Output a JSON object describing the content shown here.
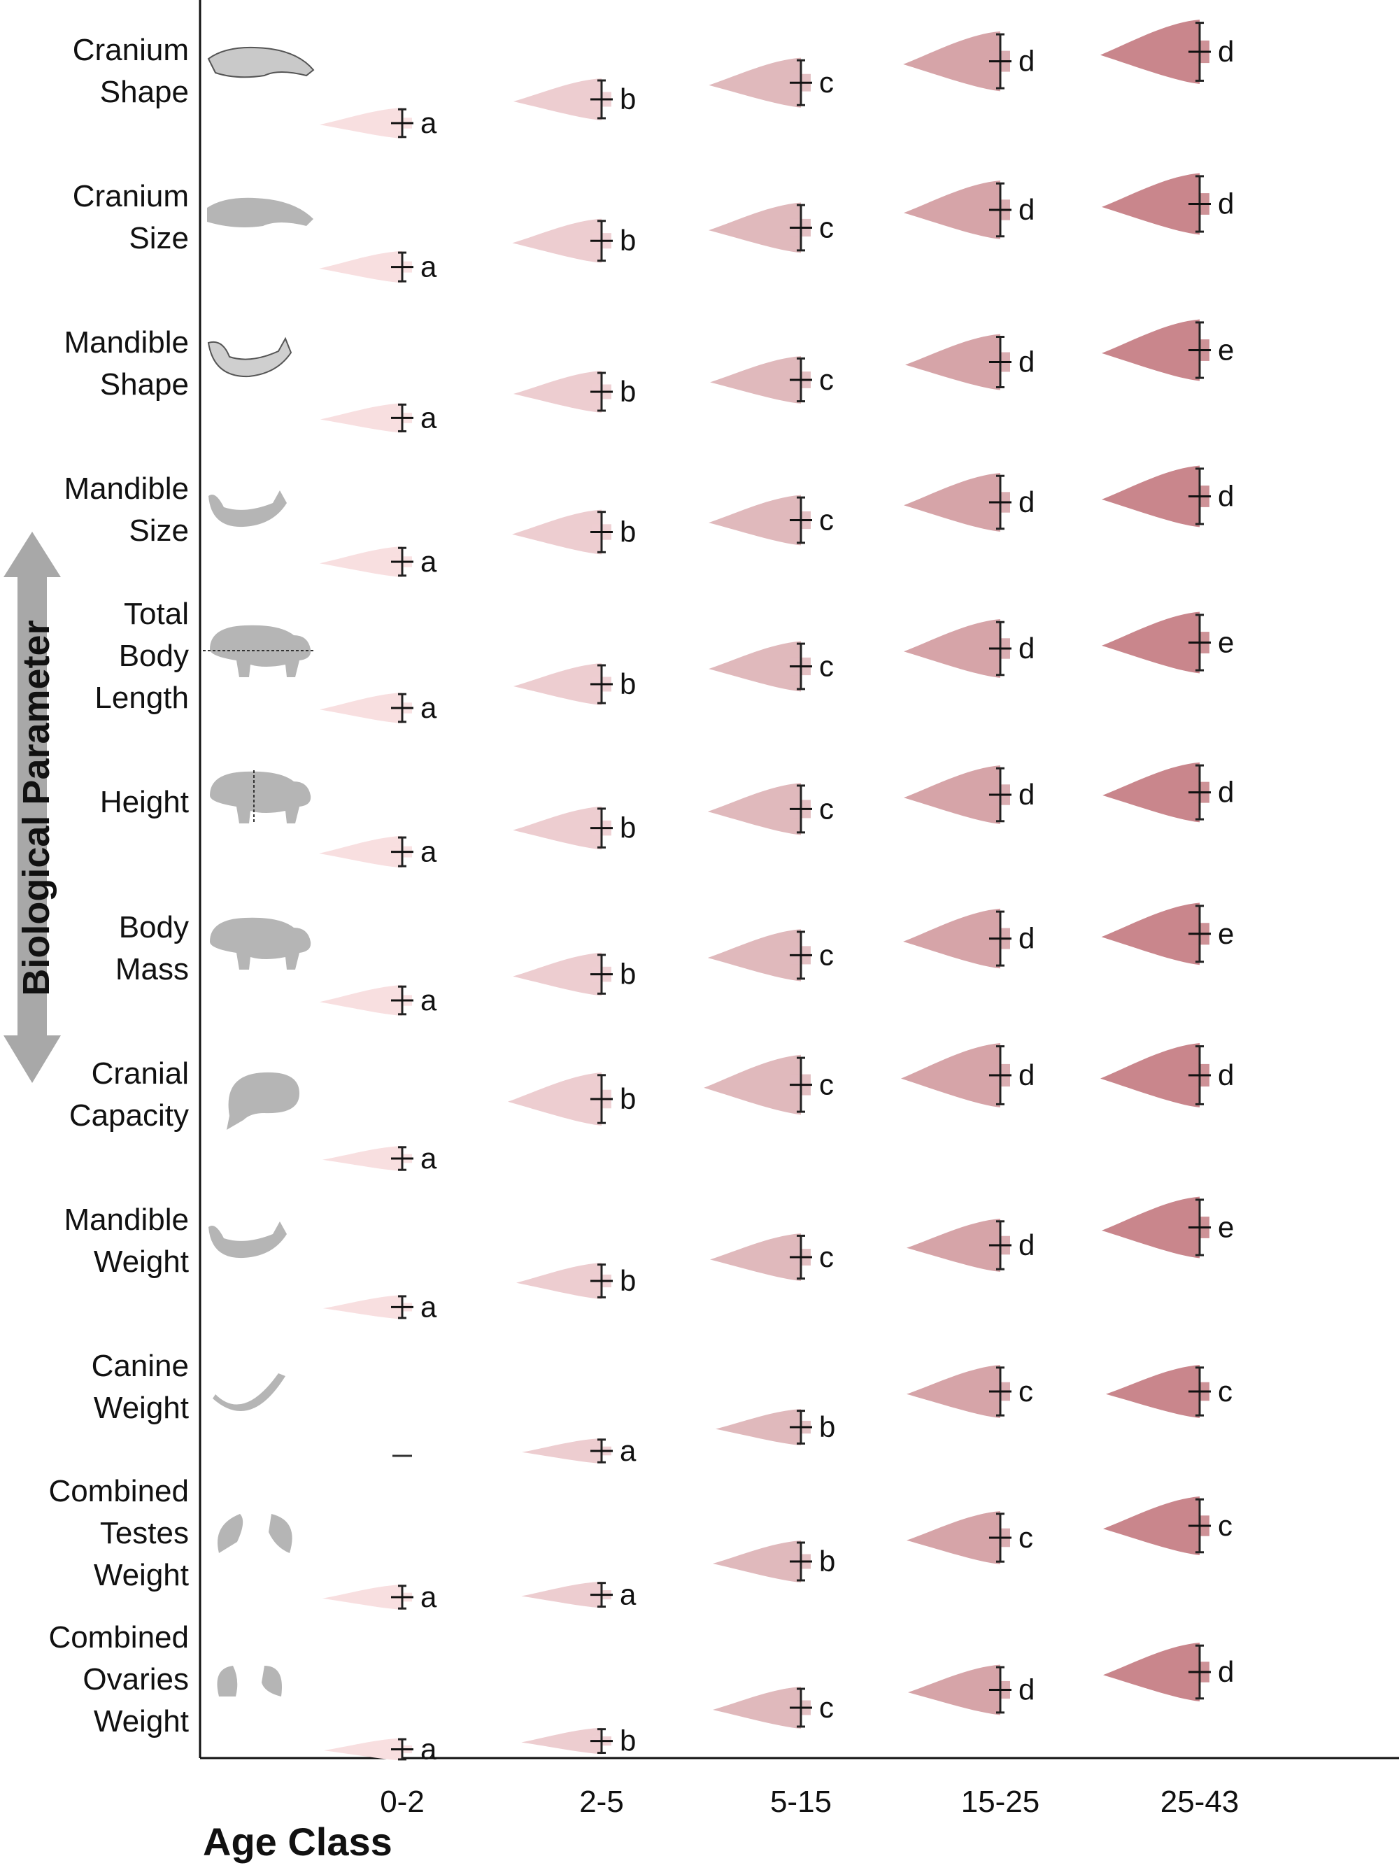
{
  "chart_data": {
    "type": "violin",
    "xlabel": "Age Class",
    "ylabel": "Biological Parameter",
    "categories": [
      "0-2",
      "2-5",
      "5-15",
      "15-25",
      "25-43"
    ],
    "colors": [
      "#f8dfe0",
      "#edcdd0",
      "#e0b9bc",
      "#d6a4a8",
      "#c9868c"
    ],
    "rows": [
      {
        "label": [
          "Cranium",
          "Shape"
        ],
        "icon": "skull-icon",
        "letters": [
          "a",
          "b",
          "c",
          "d",
          "d"
        ],
        "levels": [
          0.2,
          0.4,
          0.54,
          0.72,
          0.8
        ]
      },
      {
        "label": [
          "Cranium",
          "Size"
        ],
        "icon": "skull-silhouette-icon",
        "letters": [
          "a",
          "b",
          "c",
          "d",
          "d"
        ],
        "levels": [
          0.22,
          0.44,
          0.55,
          0.7,
          0.75
        ]
      },
      {
        "label": [
          "Mandible",
          "Shape"
        ],
        "icon": "mandible-icon",
        "letters": [
          "a",
          "b",
          "c",
          "d",
          "e"
        ],
        "levels": [
          0.18,
          0.4,
          0.5,
          0.65,
          0.75
        ]
      },
      {
        "label": [
          "Mandible",
          "Size"
        ],
        "icon": "mandible-silhouette-icon",
        "letters": [
          "a",
          "b",
          "c",
          "d",
          "d"
        ],
        "levels": [
          0.2,
          0.45,
          0.55,
          0.7,
          0.75
        ]
      },
      {
        "label": [
          "Total",
          "Body",
          "Length"
        ],
        "icon": "hippo-length-icon",
        "letters": [
          "a",
          "b",
          "c",
          "d",
          "e"
        ],
        "levels": [
          0.2,
          0.4,
          0.55,
          0.7,
          0.75
        ]
      },
      {
        "label": [
          "Height"
        ],
        "icon": "hippo-height-icon",
        "letters": [
          "a",
          "b",
          "c",
          "d",
          "d"
        ],
        "levels": [
          0.22,
          0.42,
          0.58,
          0.7,
          0.72
        ]
      },
      {
        "label": [
          "Body",
          "Mass"
        ],
        "icon": "hippo-icon",
        "letters": [
          "a",
          "b",
          "c",
          "d",
          "e"
        ],
        "levels": [
          0.2,
          0.42,
          0.58,
          0.72,
          0.76
        ]
      },
      {
        "label": [
          "Cranial",
          "Capacity"
        ],
        "icon": "brain-icon",
        "letters": [
          "a",
          "b",
          "c",
          "d",
          "d"
        ],
        "levels": [
          0.1,
          0.6,
          0.72,
          0.8,
          0.8
        ]
      },
      {
        "label": [
          "Mandible",
          "Weight"
        ],
        "icon": "mandible-weight-icon",
        "letters": [
          "a",
          "b",
          "c",
          "d",
          "e"
        ],
        "levels": [
          0.08,
          0.3,
          0.5,
          0.6,
          0.75
        ]
      },
      {
        "label": [
          "Canine",
          "Weight"
        ],
        "icon": "canine-tooth-icon",
        "letters": [
          "",
          "a",
          "b",
          "c",
          "c"
        ],
        "levels": [
          0.0,
          0.1,
          0.3,
          0.6,
          0.6
        ]
      },
      {
        "label": [
          "Combined",
          "Testes",
          "Weight"
        ],
        "icon": "testes-icon",
        "letters": [
          "a",
          "a",
          "b",
          "c",
          "c"
        ],
        "levels": [
          0.1,
          0.12,
          0.4,
          0.6,
          0.7
        ]
      },
      {
        "label": [
          "Combined",
          "Ovaries",
          "Weight"
        ],
        "icon": "ovaries-icon",
        "letters": [
          "a",
          "b",
          "c",
          "d",
          "d"
        ],
        "levels": [
          0.05,
          0.12,
          0.4,
          0.55,
          0.7
        ]
      }
    ]
  }
}
